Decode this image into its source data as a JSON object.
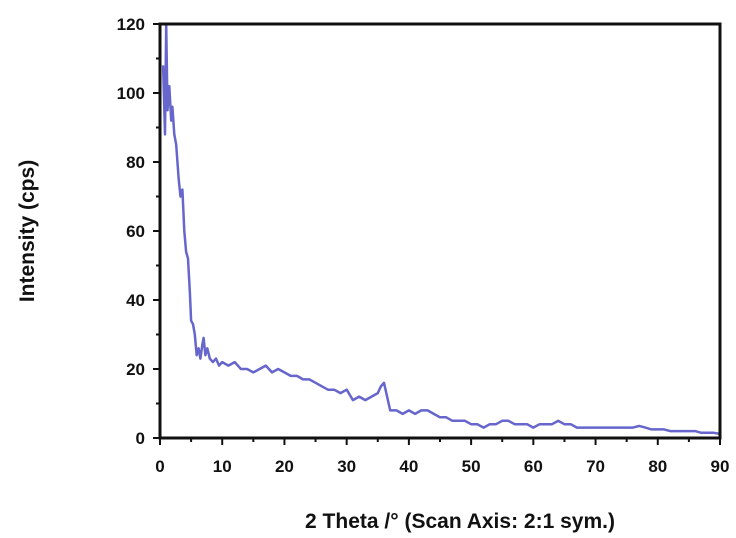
{
  "chart_data": {
    "type": "line",
    "title": "",
    "xlabel": "2 Theta /° (Scan Axis: 2:1 sym.)",
    "ylabel": "Intensity (cps)",
    "xlim": [
      0,
      90
    ],
    "ylim": [
      0,
      120
    ],
    "x_ticks": [
      0,
      10,
      20,
      30,
      40,
      50,
      60,
      70,
      80,
      90
    ],
    "y_ticks": [
      0,
      20,
      40,
      60,
      80,
      100,
      120
    ],
    "grid": false,
    "legend": "none",
    "series": [
      {
        "color": "#6666cc",
        "x": [
          0.5,
          0.8,
          1.0,
          1.2,
          1.5,
          1.8,
          2.0,
          2.3,
          2.6,
          3.0,
          3.3,
          3.6,
          3.9,
          4.2,
          4.5,
          4.8,
          5.0,
          5.3,
          5.6,
          5.9,
          6.2,
          6.5,
          6.8,
          7.0,
          7.3,
          7.6,
          8.0,
          8.5,
          9.0,
          9.5,
          10,
          11,
          12,
          13,
          14,
          15,
          16,
          17,
          18,
          19,
          20,
          21,
          22,
          23,
          24,
          25,
          26,
          27,
          28,
          29,
          30,
          31,
          32,
          33,
          34,
          35,
          35.5,
          36,
          36.5,
          37,
          38,
          39,
          40,
          41,
          42,
          43,
          44,
          45,
          46,
          47,
          48,
          49,
          50,
          51,
          52,
          53,
          54,
          55,
          56,
          57,
          58,
          59,
          60,
          61,
          62,
          63,
          64,
          65,
          66,
          67,
          68,
          69,
          70,
          71,
          72,
          73,
          74,
          75,
          76,
          77,
          78,
          79,
          80,
          81,
          82,
          83,
          84,
          85,
          86,
          87,
          88,
          89,
          90
        ],
        "values": [
          108,
          88,
          120,
          95,
          102,
          92,
          96,
          88,
          85,
          75,
          70,
          72,
          60,
          54,
          52,
          42,
          34,
          33,
          30,
          24,
          26,
          23,
          27,
          29,
          24,
          26,
          23,
          22,
          23,
          21,
          22,
          21,
          22,
          20,
          20,
          19,
          20,
          21,
          19,
          20,
          19,
          18,
          18,
          17,
          17,
          16,
          15,
          14,
          14,
          13,
          14,
          11,
          12,
          11,
          12,
          13,
          15,
          16,
          12,
          8,
          8,
          7,
          8,
          7,
          8,
          8,
          7,
          6,
          6,
          5,
          5,
          5,
          4,
          4,
          3,
          4,
          4,
          5,
          5,
          4,
          4,
          4,
          3,
          4,
          4,
          4,
          5,
          4,
          4,
          3,
          3,
          3,
          3,
          3,
          3,
          3,
          3,
          3,
          3,
          3.5,
          3,
          2.5,
          2.5,
          2.5,
          2,
          2,
          2,
          2,
          2,
          1.5,
          1.5,
          1.5,
          1.2
        ]
      }
    ]
  }
}
